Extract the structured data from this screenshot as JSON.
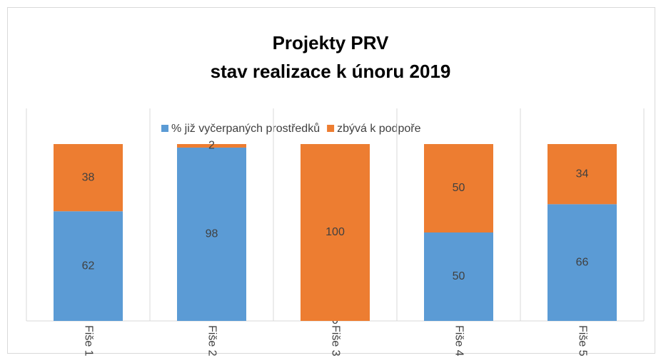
{
  "chart_data": {
    "type": "stacked_bar",
    "title": [
      "Projekty PRV",
      "stav realizace k únoru 2019"
    ],
    "categories": [
      "Fiše 1",
      "Fiše 2",
      "Fiše 3",
      "Fiše 4",
      "Fiše 5"
    ],
    "series": [
      {
        "name": "% již vyčerpaných prostředků",
        "color": "#5b9bd5",
        "values": [
          62,
          98,
          0,
          50,
          66
        ]
      },
      {
        "name": "zbývá k podpoře",
        "color": "#ed7d31",
        "values": [
          38,
          2,
          100,
          50,
          34
        ]
      }
    ],
    "ylim": [
      0,
      100
    ],
    "legend": "top"
  }
}
